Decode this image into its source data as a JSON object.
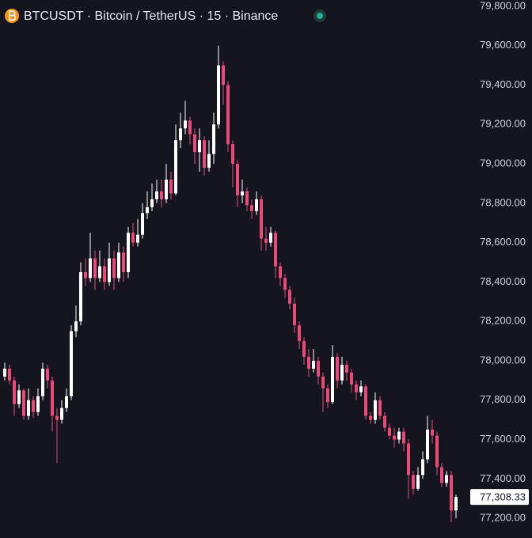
{
  "chart_data": {
    "type": "candlestick",
    "title": "BTCUSDT · Bitcoin / TetherUS · 15 · Binance",
    "up_color": "#ffffff",
    "down_color": "#e84a7a",
    "ylim": [
      77100,
      79832
    ],
    "yticks": [
      {
        "value": 79800,
        "label": "79,800.00"
      },
      {
        "value": 79600,
        "label": "79,600.00"
      },
      {
        "value": 79400,
        "label": "79,400.00"
      },
      {
        "value": 79200,
        "label": "79,200.00"
      },
      {
        "value": 79000,
        "label": "79,000.00"
      },
      {
        "value": 78800,
        "label": "78,800.00"
      },
      {
        "value": 78600,
        "label": "78,600.00"
      },
      {
        "value": 78400,
        "label": "78,400.00"
      },
      {
        "value": 78200,
        "label": "78,200.00"
      },
      {
        "value": 78000,
        "label": "78,000.00"
      },
      {
        "value": 77800,
        "label": "77,800.00"
      },
      {
        "value": 77600,
        "label": "77,600.00"
      },
      {
        "value": 77400,
        "label": "77,400.00"
      },
      {
        "value": 77200,
        "label": "77,200.00"
      }
    ],
    "last_price": {
      "value": 77308.33,
      "label": "77,308.33"
    },
    "candles": [
      [
        77920,
        77990,
        77900,
        77960
      ],
      [
        77960,
        77980,
        77880,
        77900
      ],
      [
        77900,
        77920,
        77720,
        77780
      ],
      [
        77780,
        77880,
        77760,
        77850
      ],
      [
        77850,
        77860,
        77700,
        77720
      ],
      [
        77720,
        77860,
        77700,
        77800
      ],
      [
        77800,
        77820,
        77710,
        77740
      ],
      [
        77740,
        77860,
        77720,
        77820
      ],
      [
        77820,
        77990,
        77800,
        77960
      ],
      [
        77960,
        77980,
        77860,
        77900
      ],
      [
        77900,
        77920,
        77640,
        77720
      ],
      [
        77720,
        77760,
        77480,
        77700
      ],
      [
        77700,
        77800,
        77680,
        77760
      ],
      [
        77760,
        77860,
        77740,
        77820
      ],
      [
        77820,
        78180,
        77800,
        78150
      ],
      [
        78150,
        78280,
        78120,
        78200
      ],
      [
        78200,
        78500,
        78180,
        78450
      ],
      [
        78450,
        78520,
        78380,
        78420
      ],
      [
        78420,
        78650,
        78400,
        78520
      ],
      [
        78520,
        78560,
        78360,
        78420
      ],
      [
        78420,
        78560,
        78400,
        78480
      ],
      [
        78480,
        78520,
        78360,
        78400
      ],
      [
        78400,
        78600,
        78380,
        78520
      ],
      [
        78520,
        78560,
        78360,
        78420
      ],
      [
        78420,
        78600,
        78400,
        78550
      ],
      [
        78550,
        78580,
        78400,
        78450
      ],
      [
        78450,
        78680,
        78420,
        78650
      ],
      [
        78650,
        78700,
        78580,
        78600
      ],
      [
        78600,
        78720,
        78580,
        78640
      ],
      [
        78640,
        78800,
        78620,
        78750
      ],
      [
        78750,
        78860,
        78720,
        78780
      ],
      [
        78780,
        78900,
        78760,
        78820
      ],
      [
        78820,
        78920,
        78800,
        78860
      ],
      [
        78860,
        78920,
        78780,
        78820
      ],
      [
        78820,
        79000,
        78800,
        78920
      ],
      [
        78920,
        78960,
        78820,
        78850
      ],
      [
        78850,
        79200,
        78840,
        79120
      ],
      [
        79120,
        79260,
        79080,
        79180
      ],
      [
        79180,
        79320,
        79150,
        79220
      ],
      [
        79220,
        79240,
        79100,
        79150
      ],
      [
        79150,
        79180,
        79000,
        79060
      ],
      [
        79060,
        79180,
        78960,
        79120
      ],
      [
        79120,
        79140,
        78940,
        78980
      ],
      [
        78980,
        79120,
        78960,
        79050
      ],
      [
        79050,
        79260,
        79000,
        79200
      ],
      [
        79200,
        79600,
        79180,
        79500
      ],
      [
        79500,
        79520,
        79300,
        79400
      ],
      [
        79400,
        79420,
        79060,
        79100
      ],
      [
        79100,
        79120,
        78880,
        79000
      ],
      [
        79000,
        79020,
        78780,
        78840
      ],
      [
        78840,
        78920,
        78800,
        78860
      ],
      [
        78860,
        78880,
        78760,
        78790
      ],
      [
        78790,
        78820,
        78720,
        78760
      ],
      [
        78760,
        78860,
        78740,
        78820
      ],
      [
        78820,
        78840,
        78560,
        78620
      ],
      [
        78620,
        78680,
        78560,
        78600
      ],
      [
        78600,
        78680,
        78580,
        78650
      ],
      [
        78650,
        78660,
        78420,
        78480
      ],
      [
        78480,
        78500,
        78380,
        78420
      ],
      [
        78420,
        78440,
        78320,
        78360
      ],
      [
        78360,
        78380,
        78260,
        78290
      ],
      [
        78290,
        78320,
        78140,
        78180
      ],
      [
        78180,
        78200,
        78060,
        78100
      ],
      [
        78100,
        78120,
        77980,
        78020
      ],
      [
        78020,
        78060,
        77920,
        77960
      ],
      [
        77960,
        78060,
        77940,
        78000
      ],
      [
        78000,
        78020,
        77880,
        77920
      ],
      [
        77920,
        77940,
        77740,
        77860
      ],
      [
        77860,
        77880,
        77760,
        77790
      ],
      [
        77790,
        78080,
        77780,
        78020
      ],
      [
        78020,
        78040,
        77860,
        77900
      ],
      [
        77900,
        78020,
        77880,
        77980
      ],
      [
        77980,
        78000,
        77900,
        77940
      ],
      [
        77940,
        77960,
        77840,
        77880
      ],
      [
        77880,
        77900,
        77800,
        77840
      ],
      [
        77840,
        77900,
        77820,
        77870
      ],
      [
        77870,
        77880,
        77700,
        77720
      ],
      [
        77720,
        77740,
        77680,
        77700
      ],
      [
        77700,
        77840,
        77680,
        77800
      ],
      [
        77800,
        77820,
        77700,
        77720
      ],
      [
        77720,
        77740,
        77640,
        77660
      ],
      [
        77660,
        77680,
        77600,
        77620
      ],
      [
        77620,
        77660,
        77560,
        77600
      ],
      [
        77600,
        77660,
        77580,
        77640
      ],
      [
        77640,
        77660,
        77540,
        77580
      ],
      [
        77580,
        77600,
        77300,
        77420
      ],
      [
        77420,
        77440,
        77320,
        77350
      ],
      [
        77350,
        77460,
        77340,
        77420
      ],
      [
        77420,
        77540,
        77400,
        77500
      ],
      [
        77500,
        77720,
        77480,
        77650
      ],
      [
        77650,
        77700,
        77580,
        77620
      ],
      [
        77620,
        77640,
        77420,
        77460
      ],
      [
        77460,
        77480,
        77360,
        77380
      ],
      [
        77380,
        77440,
        77360,
        77420
      ],
      [
        77420,
        77440,
        77180,
        77240
      ],
      [
        77240,
        77320,
        77200,
        77308.33
      ]
    ]
  }
}
